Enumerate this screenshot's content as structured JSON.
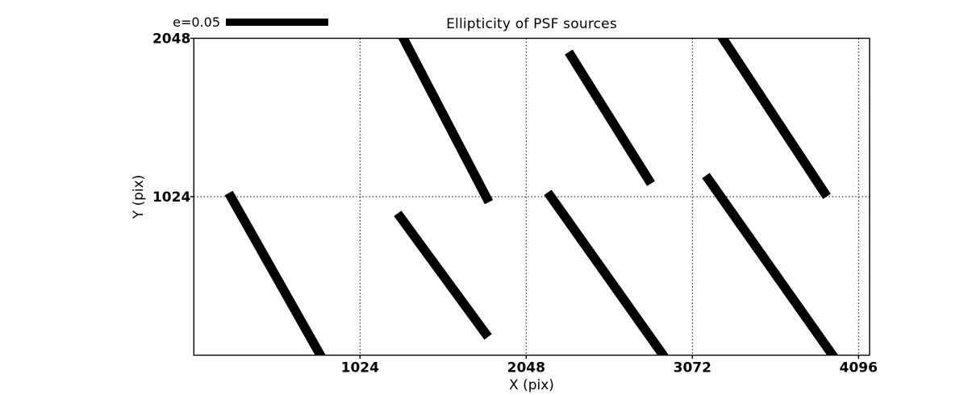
{
  "figure": {
    "title": "Ellipticity of PSF sources",
    "x_axis_label": "X (pix)",
    "y_axis_label": "Y (pix)",
    "legend_label": "e=0.05"
  },
  "chart_data": {
    "type": "line",
    "subtype": "quiver-ellipticity-whiskers",
    "title": "Ellipticity of PSF sources",
    "xlabel": "X (pix)",
    "ylabel": "Y (pix)",
    "xlim": [
      0,
      4164
    ],
    "ylim": [
      0,
      2048
    ],
    "xticks": [
      1024,
      2048,
      3072,
      4096
    ],
    "yticks": [
      1024,
      2048
    ],
    "grid": "dotted-at-ticks",
    "legend": {
      "label": "e=0.05",
      "position": "outside-top-left",
      "bar_color": "#000000"
    },
    "colors": {
      "whisker": "#000000",
      "axes": "#000000",
      "background": "#ffffff"
    },
    "whiskers": [
      {
        "x1": 215,
        "y1": 1048,
        "x2": 780,
        "y2": 0,
        "clipped": "bottom"
      },
      {
        "x1": 1291,
        "y1": 2048,
        "x2": 1818,
        "y2": 989,
        "clipped": "top"
      },
      {
        "x1": 1256,
        "y1": 916,
        "x2": 1813,
        "y2": 118,
        "clipped": null
      },
      {
        "x1": 2310,
        "y1": 1959,
        "x2": 2817,
        "y2": 1109,
        "clipped": null
      },
      {
        "x1": 2181,
        "y1": 1052,
        "x2": 2892,
        "y2": 0,
        "clipped": "bottom"
      },
      {
        "x1": 3259,
        "y1": 2048,
        "x2": 3901,
        "y2": 1026,
        "clipped": "top"
      },
      {
        "x1": 3155,
        "y1": 1161,
        "x2": 3936,
        "y2": 0,
        "clipped": "bottom"
      }
    ]
  }
}
